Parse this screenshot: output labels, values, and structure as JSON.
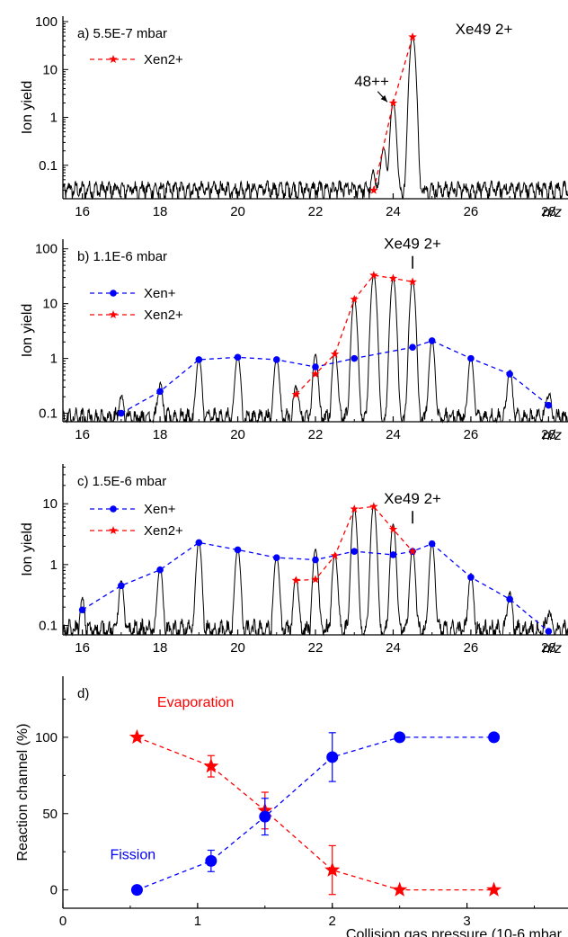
{
  "chart_data": [
    {
      "panel": "a",
      "type": "line",
      "label": "a) 5.5E-7 mbar",
      "xlabel": "n/z",
      "ylabel": "Ion yield",
      "yscale": "log",
      "xlim": [
        15.5,
        28.5
      ],
      "ylim": [
        0.02,
        130
      ],
      "xticks": [
        16,
        18,
        20,
        22,
        24,
        26,
        28
      ],
      "yticks": [
        {
          "value": 0.1,
          "label": "0.1"
        },
        {
          "value": 1,
          "label": "1"
        },
        {
          "value": 10,
          "label": "10"
        },
        {
          "value": 100,
          "label": "100"
        }
      ],
      "legend": [
        {
          "text": "Xen2+",
          "style": "star-red"
        }
      ],
      "spectrum": {
        "baseline": 0.032,
        "peaks": [
          [
            23.5,
            0.035
          ],
          [
            23.75,
            0.2
          ],
          [
            24.0,
            2.0
          ],
          [
            24.5,
            50.0
          ]
        ]
      },
      "series": [
        {
          "name": "Xen2+",
          "marker": "star",
          "color": "#ff0000",
          "x": [
            23.5,
            24.0,
            24.5
          ],
          "y": [
            0.03,
            2.0,
            48.0
          ]
        }
      ],
      "annotations": [
        {
          "text": "Xe49 2+",
          "x": 25.6,
          "y": 55
        },
        {
          "text": "48++",
          "x": 23.0,
          "y": 4.5,
          "arrow_to": [
            23.85,
            2.1
          ]
        }
      ]
    },
    {
      "panel": "b",
      "type": "line",
      "label": "b) 1.1E-6 mbar",
      "xlabel": "n/z",
      "ylabel": "Ion yield",
      "yscale": "log",
      "xlim": [
        15.5,
        28.5
      ],
      "ylim": [
        0.07,
        150
      ],
      "xticks": [
        16,
        18,
        20,
        22,
        24,
        26,
        28
      ],
      "yticks": [
        {
          "value": 0.1,
          "label": "0.1"
        },
        {
          "value": 1,
          "label": "1"
        },
        {
          "value": 10,
          "label": "10"
        },
        {
          "value": 100,
          "label": "100"
        }
      ],
      "legend": [
        {
          "text": "Xen+",
          "style": "circle-blue"
        },
        {
          "text": "Xen2+",
          "style": "star-red"
        }
      ],
      "spectrum": {
        "baseline": 0.085,
        "peaks": [
          [
            17.0,
            0.11
          ],
          [
            18.0,
            0.26
          ],
          [
            19.0,
            0.95
          ],
          [
            20.0,
            1.05
          ],
          [
            21.0,
            0.95
          ],
          [
            21.5,
            0.23
          ],
          [
            22.0,
            1.1
          ],
          [
            22.5,
            1.3
          ],
          [
            23.0,
            12.0
          ],
          [
            23.5,
            33.0
          ],
          [
            24.0,
            29.0
          ],
          [
            24.5,
            26.0
          ],
          [
            25.0,
            2.1
          ],
          [
            26.0,
            1.0
          ],
          [
            27.0,
            0.53
          ],
          [
            28.0,
            0.15
          ]
        ]
      },
      "series": [
        {
          "name": "Xen+",
          "marker": "circle",
          "color": "#0000ff",
          "x": [
            17,
            18,
            19,
            20,
            21,
            22,
            23,
            24.5,
            25,
            26,
            27,
            28
          ],
          "y": [
            0.1,
            0.25,
            0.95,
            1.05,
            0.95,
            0.7,
            1.0,
            1.6,
            2.1,
            1.0,
            0.52,
            0.14
          ]
        },
        {
          "name": "Xen2+",
          "marker": "star",
          "color": "#ff0000",
          "x": [
            21.5,
            22.0,
            22.5,
            23.0,
            23.5,
            24.0,
            24.5
          ],
          "y": [
            0.22,
            0.52,
            1.2,
            12.0,
            33.0,
            29.0,
            25.0
          ]
        }
      ],
      "annotations": [
        {
          "text": "Xe49 2+",
          "x": 24.5,
          "y": 100,
          "tick_at": 24.5
        }
      ]
    },
    {
      "panel": "c",
      "type": "line",
      "label": "c) 1.5E-6 mbar",
      "xlabel": "n/z",
      "ylabel": "Ion yield",
      "yscale": "log",
      "xlim": [
        15.5,
        28.5
      ],
      "ylim": [
        0.07,
        45
      ],
      "xticks": [
        16,
        18,
        20,
        22,
        24,
        26,
        28
      ],
      "yticks": [
        {
          "value": 0.1,
          "label": "0.1"
        },
        {
          "value": 1,
          "label": "1"
        },
        {
          "value": 10,
          "label": "10"
        }
      ],
      "legend": [
        {
          "text": "Xen+",
          "style": "circle-blue"
        },
        {
          "text": "Xen2+",
          "style": "star-red"
        }
      ],
      "spectrum": {
        "baseline": 0.085,
        "peaks": [
          [
            16.0,
            0.17
          ],
          [
            17.0,
            0.45
          ],
          [
            18.0,
            0.82
          ],
          [
            19.0,
            2.3
          ],
          [
            20.0,
            1.75
          ],
          [
            21.0,
            1.3
          ],
          [
            21.5,
            0.55
          ],
          [
            22.0,
            1.7
          ],
          [
            22.5,
            1.4
          ],
          [
            23.0,
            8.2
          ],
          [
            23.5,
            9.5
          ],
          [
            24.0,
            4.5
          ],
          [
            24.5,
            1.7
          ],
          [
            25.0,
            2.2
          ],
          [
            26.0,
            0.62
          ],
          [
            27.0,
            0.26
          ],
          [
            28.0,
            0.08
          ]
        ]
      },
      "series": [
        {
          "name": "Xen+",
          "marker": "circle",
          "color": "#0000ff",
          "x": [
            16,
            17,
            18,
            19,
            20,
            21,
            22,
            23,
            24,
            24.5,
            25,
            26,
            27,
            28
          ],
          "y": [
            0.18,
            0.45,
            0.82,
            2.3,
            1.75,
            1.3,
            1.2,
            1.65,
            1.45,
            1.65,
            2.2,
            0.62,
            0.27,
            0.08
          ]
        },
        {
          "name": "Xen2+",
          "marker": "star",
          "color": "#ff0000",
          "x": [
            21.5,
            22.0,
            22.5,
            23.0,
            23.5,
            24.0,
            24.5
          ],
          "y": [
            0.55,
            0.57,
            1.4,
            8.2,
            9.0,
            3.8,
            1.65
          ]
        }
      ],
      "annotations": [
        {
          "text": "Xe49 2+",
          "x": 24.5,
          "y": 10,
          "tick_at": 24.5
        }
      ]
    },
    {
      "panel": "d",
      "type": "scatter",
      "label": "d)",
      "xlabel": "Collision gas pressure (10-6 mbar",
      "ylabel": "Reaction channel (%)",
      "yscale": "linear",
      "xlim": [
        0,
        3.75
      ],
      "ylim": [
        -12,
        140
      ],
      "xticks": [
        0,
        1,
        2,
        3
      ],
      "yticks": [
        {
          "value": 0,
          "label": "0"
        },
        {
          "value": 50,
          "label": "50"
        },
        {
          "value": 100,
          "label": "100"
        }
      ],
      "series": [
        {
          "name": "Evaporation",
          "marker": "star",
          "color": "#ff0000",
          "x": [
            0.55,
            1.1,
            1.5,
            2.0,
            2.5,
            3.2
          ],
          "y": [
            100,
            81,
            52,
            13,
            0,
            0
          ],
          "err": [
            0,
            7,
            12,
            16,
            0,
            0
          ]
        },
        {
          "name": "Fission",
          "marker": "circle",
          "color": "#0000ff",
          "x": [
            0.55,
            1.1,
            1.5,
            2.0,
            2.5,
            3.2
          ],
          "y": [
            0,
            19,
            48,
            87,
            100,
            100
          ],
          "err": [
            0,
            7,
            12,
            16,
            0,
            0
          ]
        }
      ],
      "series_labels": [
        {
          "text": "Evaporation",
          "color": "#ff0000",
          "x": 0.7,
          "y": 120
        },
        {
          "text": "Fission",
          "color": "#0000ff",
          "x": 0.35,
          "y": 20
        }
      ]
    }
  ]
}
